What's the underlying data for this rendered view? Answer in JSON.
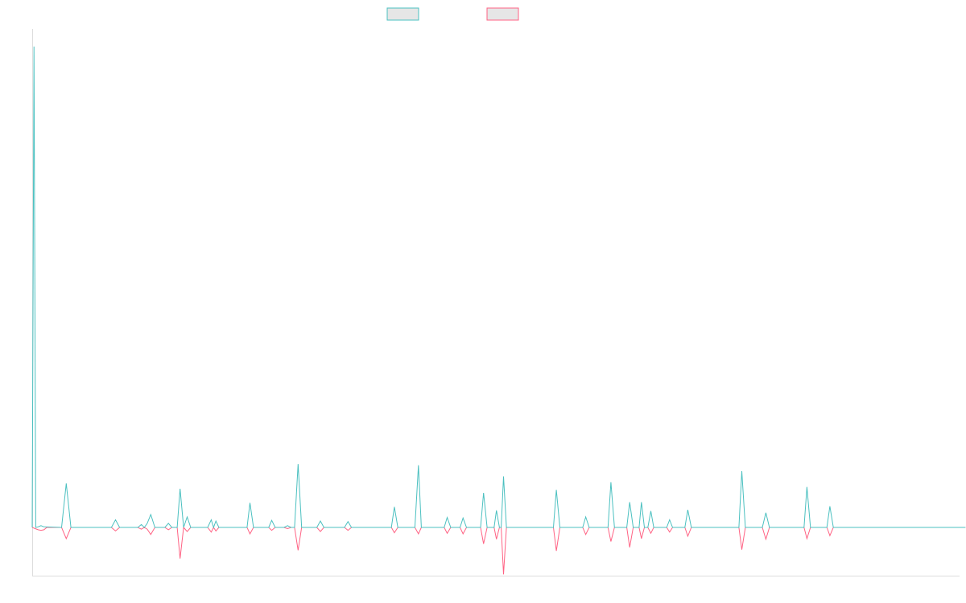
{
  "chart_data": {
    "type": "line",
    "title": "",
    "xlabel": "",
    "ylabel": "",
    "legend_position": "top-center",
    "grid": false,
    "point_count": 159,
    "ylim": [
      -8.0,
      85.0
    ],
    "colors": {
      "series_a": "#4bc0c0",
      "series_b": "#ff6384",
      "axis": "#dddddd",
      "legend_fill": "#e6e6e6"
    },
    "series": [
      {
        "key": "series_a",
        "color": "#4bc0c0",
        "points": [
          [
            0,
            0
          ],
          [
            0.3,
            82
          ],
          [
            0.6,
            0
          ],
          [
            1,
            0.1
          ],
          [
            1.5,
            0.3
          ],
          [
            2,
            0.1
          ],
          [
            5,
            0
          ],
          [
            5.8,
            7.5
          ],
          [
            6.6,
            0
          ],
          [
            13.5,
            0
          ],
          [
            14.2,
            1.3
          ],
          [
            14.9,
            0
          ],
          [
            18,
            0
          ],
          [
            18.6,
            0.5
          ],
          [
            19.1,
            0
          ],
          [
            19.6,
            0.7
          ],
          [
            20.2,
            2.2
          ],
          [
            20.9,
            0
          ],
          [
            22.6,
            0
          ],
          [
            23.2,
            0.7
          ],
          [
            23.8,
            0
          ],
          [
            24.7,
            0
          ],
          [
            25.2,
            6.6
          ],
          [
            25.8,
            0
          ],
          [
            26.4,
            1.8
          ],
          [
            27,
            0
          ],
          [
            29.9,
            0
          ],
          [
            30.5,
            1.3
          ],
          [
            30.9,
            0
          ],
          [
            31.3,
            1.1
          ],
          [
            31.8,
            0
          ],
          [
            36.6,
            0
          ],
          [
            37.1,
            4.2
          ],
          [
            37.7,
            0
          ],
          [
            40.3,
            0
          ],
          [
            40.8,
            1.2
          ],
          [
            41.4,
            0
          ],
          [
            42.9,
            0
          ],
          [
            43.5,
            0.3
          ],
          [
            44.1,
            0
          ],
          [
            44.7,
            0
          ],
          [
            45.3,
            10.8
          ],
          [
            45.9,
            0
          ],
          [
            48.5,
            0
          ],
          [
            49.1,
            1.1
          ],
          [
            49.7,
            0
          ],
          [
            53.2,
            0
          ],
          [
            53.8,
            1.0
          ],
          [
            54.4,
            0
          ],
          [
            61.2,
            0
          ],
          [
            61.7,
            3.5
          ],
          [
            62.3,
            0
          ],
          [
            65.2,
            0
          ],
          [
            65.8,
            10.6
          ],
          [
            66.3,
            0
          ],
          [
            70.2,
            0
          ],
          [
            70.7,
            1.7
          ],
          [
            71.3,
            0
          ],
          [
            72.9,
            0
          ],
          [
            73.4,
            1.6
          ],
          [
            74,
            0
          ],
          [
            76.4,
            0
          ],
          [
            76.9,
            5.9
          ],
          [
            77.5,
            0
          ],
          [
            78.7,
            0
          ],
          [
            79.1,
            2.9
          ],
          [
            79.6,
            0
          ],
          [
            79.9,
            0
          ],
          [
            80.3,
            8.7
          ],
          [
            80.8,
            0
          ],
          [
            88.8,
            0
          ],
          [
            89.3,
            6.4
          ],
          [
            89.9,
            0
          ],
          [
            93.8,
            0
          ],
          [
            94.3,
            1.8
          ],
          [
            94.9,
            0
          ],
          [
            98.1,
            0
          ],
          [
            98.6,
            7.7
          ],
          [
            99.2,
            0
          ],
          [
            101.3,
            0
          ],
          [
            101.8,
            4.3
          ],
          [
            102.4,
            0
          ],
          [
            103.4,
            0
          ],
          [
            103.8,
            4.3
          ],
          [
            104.3,
            0
          ],
          [
            104.9,
            0
          ],
          [
            105.4,
            2.8
          ],
          [
            105.9,
            0
          ],
          [
            108.1,
            0
          ],
          [
            108.6,
            1.3
          ],
          [
            109.1,
            0
          ],
          [
            111.2,
            0
          ],
          [
            111.7,
            3.0
          ],
          [
            112.3,
            0
          ],
          [
            120.4,
            0
          ],
          [
            120.9,
            9.6
          ],
          [
            121.5,
            0
          ],
          [
            124.4,
            0
          ],
          [
            125,
            2.5
          ],
          [
            125.6,
            0
          ],
          [
            131.5,
            0
          ],
          [
            132,
            6.9
          ],
          [
            132.6,
            0
          ],
          [
            135.4,
            0
          ],
          [
            135.9,
            3.6
          ],
          [
            136.5,
            0
          ],
          [
            159,
            0
          ]
        ]
      },
      {
        "key": "series_b",
        "color": "#ff6384",
        "points": [
          [
            0,
            0
          ],
          [
            1,
            -0.4
          ],
          [
            1.5,
            -0.5
          ],
          [
            2,
            -0.4
          ],
          [
            2.5,
            0
          ],
          [
            5,
            0
          ],
          [
            5.8,
            -1.9
          ],
          [
            6.6,
            0
          ],
          [
            13.5,
            0
          ],
          [
            14.2,
            -0.6
          ],
          [
            14.9,
            0
          ],
          [
            18,
            0
          ],
          [
            18.6,
            -0.3
          ],
          [
            19.1,
            0
          ],
          [
            19.6,
            -0.3
          ],
          [
            20.2,
            -1.2
          ],
          [
            20.9,
            0
          ],
          [
            22.6,
            0
          ],
          [
            23.2,
            -0.4
          ],
          [
            23.8,
            0
          ],
          [
            24.7,
            0
          ],
          [
            25.2,
            -5.3
          ],
          [
            25.8,
            0
          ],
          [
            26.4,
            -0.7
          ],
          [
            27,
            0
          ],
          [
            29.9,
            0
          ],
          [
            30.5,
            -0.8
          ],
          [
            30.9,
            0
          ],
          [
            31.3,
            -0.6
          ],
          [
            31.8,
            0
          ],
          [
            36.6,
            0
          ],
          [
            37.1,
            -1.1
          ],
          [
            37.7,
            0
          ],
          [
            40.3,
            0
          ],
          [
            40.8,
            -0.5
          ],
          [
            41.4,
            0
          ],
          [
            42.9,
            0
          ],
          [
            43.5,
            -0.2
          ],
          [
            44.1,
            0
          ],
          [
            44.7,
            0
          ],
          [
            45.3,
            -3.9
          ],
          [
            45.9,
            0
          ],
          [
            48.5,
            0
          ],
          [
            49.1,
            -0.7
          ],
          [
            49.7,
            0
          ],
          [
            53.2,
            0
          ],
          [
            53.8,
            -0.5
          ],
          [
            54.4,
            0
          ],
          [
            61.2,
            0
          ],
          [
            61.7,
            -0.9
          ],
          [
            62.3,
            0
          ],
          [
            65.2,
            0
          ],
          [
            65.8,
            -1.1
          ],
          [
            66.3,
            0
          ],
          [
            70.2,
            0
          ],
          [
            70.7,
            -1.0
          ],
          [
            71.3,
            0
          ],
          [
            72.9,
            0
          ],
          [
            73.4,
            -1.1
          ],
          [
            74,
            0
          ],
          [
            76.4,
            0
          ],
          [
            76.9,
            -2.8
          ],
          [
            77.5,
            0
          ],
          [
            78.7,
            0
          ],
          [
            79.1,
            -2.0
          ],
          [
            79.6,
            0
          ],
          [
            79.9,
            0
          ],
          [
            80.3,
            -8.0
          ],
          [
            80.8,
            0
          ],
          [
            88.8,
            0
          ],
          [
            89.3,
            -4.0
          ],
          [
            89.9,
            0
          ],
          [
            93.8,
            0
          ],
          [
            94.3,
            -1.2
          ],
          [
            94.9,
            0
          ],
          [
            98.1,
            0
          ],
          [
            98.6,
            -2.4
          ],
          [
            99.2,
            0
          ],
          [
            101.3,
            0
          ],
          [
            101.8,
            -3.4
          ],
          [
            102.4,
            0
          ],
          [
            103.4,
            0
          ],
          [
            103.8,
            -1.9
          ],
          [
            104.3,
            0
          ],
          [
            104.9,
            0
          ],
          [
            105.4,
            -1.0
          ],
          [
            105.9,
            0
          ],
          [
            108.1,
            0
          ],
          [
            108.6,
            -0.8
          ],
          [
            109.1,
            0
          ],
          [
            111.2,
            0
          ],
          [
            111.7,
            -1.5
          ],
          [
            112.3,
            0
          ],
          [
            120.4,
            0
          ],
          [
            120.9,
            -3.8
          ],
          [
            121.5,
            0
          ],
          [
            124.4,
            0
          ],
          [
            125,
            -2.0
          ],
          [
            125.6,
            0
          ],
          [
            131.5,
            0
          ],
          [
            132,
            -1.9
          ],
          [
            132.6,
            0
          ],
          [
            135.4,
            0
          ],
          [
            135.9,
            -1.4
          ],
          [
            136.5,
            0
          ],
          [
            159,
            0
          ]
        ]
      }
    ]
  }
}
